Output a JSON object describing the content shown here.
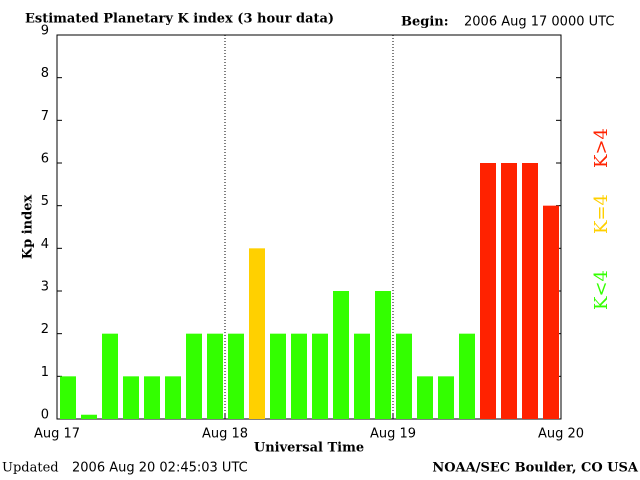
{
  "chart_data": {
    "type": "bar",
    "title": "Estimated Planetary K index (3 hour data)",
    "begin_label": "Begin:",
    "begin": "2006 Aug 17 0000 UTC",
    "ylabel": "Kp index",
    "xlabel": "Universal Time",
    "updated_label": "Updated",
    "updated": "2006 Aug 20 02:45:03 UTC",
    "source": "NOAA/SEC Boulder, CO USA",
    "categories": [
      null,
      null,
      null,
      null,
      null,
      null,
      null,
      null,
      null,
      null,
      null,
      null,
      null,
      null,
      null,
      null,
      null,
      null,
      null,
      null,
      null,
      null,
      null,
      null
    ],
    "values": [
      1,
      0.1,
      2,
      1,
      1,
      1,
      2,
      2,
      2,
      4,
      2,
      2,
      2,
      3,
      2,
      3,
      2,
      1,
      1,
      2,
      6,
      6,
      6,
      5
    ],
    "colors": [
      "#33ff00",
      "#33ff00",
      "#33ff00",
      "#33ff00",
      "#33ff00",
      "#33ff00",
      "#33ff00",
      "#33ff00",
      "#33ff00",
      "#ffd000",
      "#33ff00",
      "#33ff00",
      "#33ff00",
      "#33ff00",
      "#33ff00",
      "#33ff00",
      "#33ff00",
      "#33ff00",
      "#33ff00",
      "#33ff00",
      "#ff2200",
      "#ff2200",
      "#ff2200",
      "#ff2200"
    ],
    "legend": [
      {
        "name": "K<4",
        "color": "#33ff00"
      },
      {
        "name": "K=4",
        "color": "#ffd000"
      },
      {
        "name": "K>4",
        "color": "#ff2200"
      }
    ],
    "xlim": [
      0,
      24
    ],
    "xticks": [
      {
        "value": 0,
        "label": "Aug 17"
      },
      {
        "value": 8,
        "label": "Aug 18"
      },
      {
        "value": 16,
        "label": "Aug 19"
      },
      {
        "value": 24,
        "label": "Aug 20"
      }
    ],
    "ylim": [
      0,
      9
    ],
    "yticks": [
      0,
      1,
      2,
      3,
      4,
      5,
      6,
      7,
      8,
      9
    ],
    "grid": true
  }
}
